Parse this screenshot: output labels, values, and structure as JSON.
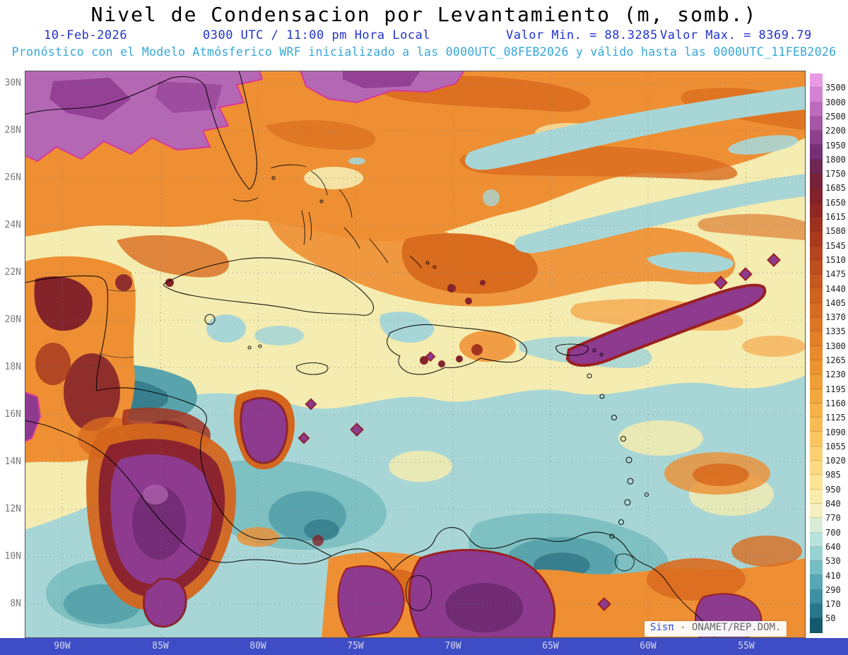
{
  "title": "Nivel de Condensacion por Levantamiento (m, somb.)",
  "info_line": {
    "date": "10-Feb-2026",
    "time": "0300 UTC / 11:00 pm Hora Local",
    "min": "Valor Min. = 88.3285",
    "max": "Valor Max. = 8369.79"
  },
  "forecast_line": "Pronóstico con el Modelo Atmósferico WRF inicializado a las 0000UTC_08FEB2026 y válido hasta las  0000UTC_11FEB2026",
  "map": {
    "lat_labels": [
      "30N",
      "28N",
      "26N",
      "24N",
      "22N",
      "20N",
      "18N",
      "16N",
      "14N",
      "12N",
      "10N",
      "8N"
    ],
    "lon_labels": [
      "90W",
      "85W",
      "80W",
      "75W",
      "70W",
      "65W",
      "60W",
      "55W"
    ],
    "watermark_brand": "Sisπ",
    "watermark_rest": "- ONAMET/REP.DOM."
  },
  "colorbar": {
    "labels": [
      "3500",
      "3000",
      "2500",
      "2200",
      "1950",
      "1800",
      "1750",
      "1685",
      "1650",
      "1615",
      "1580",
      "1545",
      "1510",
      "1475",
      "1440",
      "1405",
      "1370",
      "1335",
      "1300",
      "1265",
      "1230",
      "1195",
      "1160",
      "1125",
      "1090",
      "1055",
      "1020",
      "985",
      "950",
      "840",
      "770",
      "700",
      "640",
      "530",
      "410",
      "290",
      "170",
      "50"
    ],
    "colors": [
      "#e79ae3",
      "#d383d3",
      "#bd6cbd",
      "#a556a5",
      "#8d418d",
      "#762e76",
      "#6d2752",
      "#75223a",
      "#82222c",
      "#8f2823",
      "#9c3120",
      "#a93a1e",
      "#b4441e",
      "#bd4e1e",
      "#c6581f",
      "#ce6220",
      "#d56c22",
      "#dc7624",
      "#e28027",
      "#e78a2b",
      "#ec9430",
      "#f09e37",
      "#f3a83f",
      "#f6b249",
      "#f8bc55",
      "#fac662",
      "#fbd071",
      "#fcda82",
      "#fde494",
      "#f9ecab",
      "#f3efc0",
      "#d9edd6",
      "#b9e2dc",
      "#97d2d2",
      "#75bec4",
      "#57a8b4",
      "#3d90a2",
      "#28768c",
      "#14596e"
    ]
  }
}
